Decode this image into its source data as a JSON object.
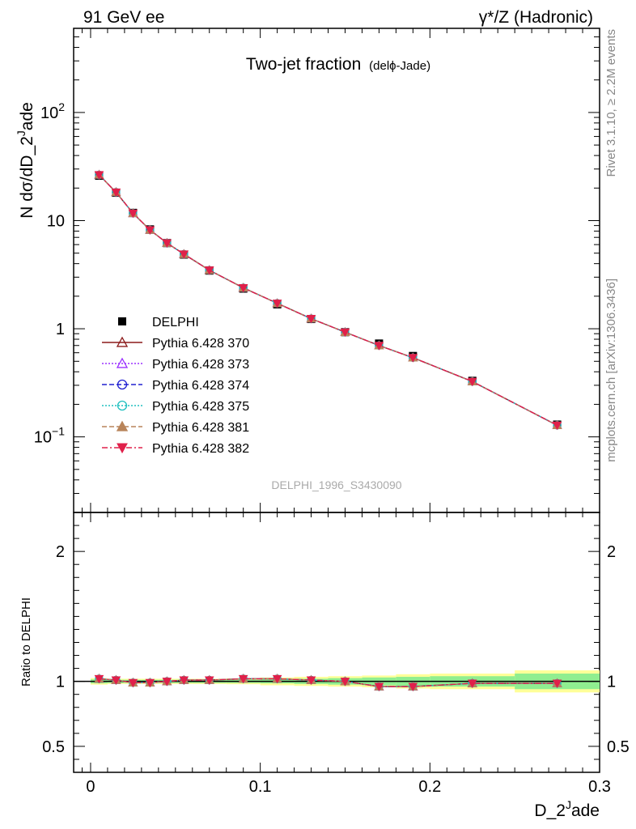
{
  "header": {
    "left": "91 GeV ee",
    "right": "γ*/Z (Hadronic)"
  },
  "side": {
    "rivet": "Rivet 3.1.10, ≥ 2.2M events",
    "mcplots": "mcplots.cern.ch [arXiv:1306.3436]"
  },
  "watermark": "DELPHI_1996_S3430090",
  "chart_data": [
    {
      "type": "scatter",
      "panel": "main",
      "title": "Two-jet fraction",
      "title_small": "(delphi-Jade)",
      "title_small_text": "(delϕ-Jade)",
      "xlabel": "D_2^Jade",
      "ylabel": "N dσ/dD_2^Jade",
      "ylabel_text": "N dσ/dD_2",
      "ylabel_sup": "J",
      "ylabel_tail": "ade",
      "xlim": [
        -0.01,
        0.3
      ],
      "ylim": [
        0.02,
        600
      ],
      "yscale": "log",
      "y_tick_labels": [
        "10^−1",
        "1",
        "10",
        "10^2"
      ],
      "x": [
        0.005,
        0.015,
        0.025,
        0.035,
        0.045,
        0.055,
        0.07,
        0.09,
        0.11,
        0.13,
        0.15,
        0.17,
        0.19,
        0.225,
        0.275
      ],
      "series": [
        {
          "name": "DELPHI",
          "marker": "square-filled",
          "color": "#000000",
          "values": [
            26.0,
            18.1,
            11.8,
            8.3,
            6.2,
            4.85,
            3.45,
            2.35,
            1.68,
            1.23,
            0.93,
            0.73,
            0.56,
            0.33,
            0.13
          ]
        },
        {
          "name": "Pythia 6.428 370",
          "marker": "triangle-open",
          "color": "#8b1a1a",
          "line": "solid",
          "values": [
            26.5,
            18.3,
            11.7,
            8.2,
            6.2,
            4.9,
            3.48,
            2.39,
            1.72,
            1.24,
            0.93,
            0.7,
            0.54,
            0.325,
            0.128
          ]
        },
        {
          "name": "Pythia 6.428 373",
          "marker": "triangle-open",
          "color": "#9b30ff",
          "line": "dotted",
          "values": [
            26.5,
            18.3,
            11.7,
            8.2,
            6.2,
            4.9,
            3.48,
            2.39,
            1.72,
            1.24,
            0.93,
            0.7,
            0.54,
            0.325,
            0.128
          ]
        },
        {
          "name": "Pythia 6.428 374",
          "marker": "circle-open",
          "color": "#2020d0",
          "line": "dashed",
          "values": [
            26.5,
            18.3,
            11.7,
            8.2,
            6.2,
            4.9,
            3.48,
            2.39,
            1.72,
            1.24,
            0.93,
            0.7,
            0.54,
            0.325,
            0.128
          ]
        },
        {
          "name": "Pythia 6.428 375",
          "marker": "circle-open",
          "color": "#20c0c0",
          "line": "dotted",
          "values": [
            26.5,
            18.3,
            11.7,
            8.2,
            6.2,
            4.9,
            3.48,
            2.39,
            1.72,
            1.24,
            0.93,
            0.7,
            0.54,
            0.325,
            0.128
          ]
        },
        {
          "name": "Pythia 6.428 381",
          "marker": "triangle-filled",
          "color": "#b8845a",
          "line": "dashed",
          "values": [
            26.5,
            18.3,
            11.7,
            8.2,
            6.2,
            4.9,
            3.48,
            2.39,
            1.72,
            1.24,
            0.93,
            0.7,
            0.54,
            0.325,
            0.128
          ]
        },
        {
          "name": "Pythia 6.428 382",
          "marker": "triangle-down-filled",
          "color": "#e0204a",
          "line": "dashdot",
          "values": [
            26.5,
            18.3,
            11.7,
            8.2,
            6.2,
            4.9,
            3.48,
            2.39,
            1.72,
            1.24,
            0.93,
            0.7,
            0.54,
            0.325,
            0.128
          ]
        }
      ]
    },
    {
      "type": "scatter",
      "panel": "ratio",
      "xlabel": "D_2^Jade",
      "ylabel": "Ratio to DELPHI",
      "xlim": [
        -0.01,
        0.3
      ],
      "ylim": [
        0.3,
        2.3
      ],
      "x_tick_labels": [
        "0",
        "0.1",
        "0.2",
        "0.3"
      ],
      "y_tick_labels": [
        "0.5",
        "1",
        "2"
      ],
      "x_edges": [
        0.0,
        0.01,
        0.02,
        0.03,
        0.04,
        0.05,
        0.06,
        0.08,
        0.1,
        0.12,
        0.14,
        0.16,
        0.18,
        0.2,
        0.25,
        0.3
      ],
      "band_inner": [
        0.015,
        0.012,
        0.012,
        0.012,
        0.012,
        0.012,
        0.012,
        0.012,
        0.015,
        0.02,
        0.025,
        0.03,
        0.035,
        0.04,
        0.06
      ],
      "band_outer": [
        0.025,
        0.02,
        0.02,
        0.02,
        0.02,
        0.02,
        0.02,
        0.022,
        0.03,
        0.035,
        0.04,
        0.045,
        0.055,
        0.06,
        0.085
      ],
      "x": [
        0.005,
        0.015,
        0.025,
        0.035,
        0.045,
        0.055,
        0.07,
        0.09,
        0.11,
        0.13,
        0.15,
        0.17,
        0.19,
        0.225,
        0.275
      ],
      "values": [
        1.02,
        1.01,
        0.99,
        0.99,
        1.0,
        1.01,
        1.01,
        1.02,
        1.02,
        1.01,
        1.0,
        0.96,
        0.96,
        0.985,
        0.985
      ]
    }
  ],
  "colors": {
    "band_inner": "#90ee90",
    "band_outer": "#ffff99"
  }
}
